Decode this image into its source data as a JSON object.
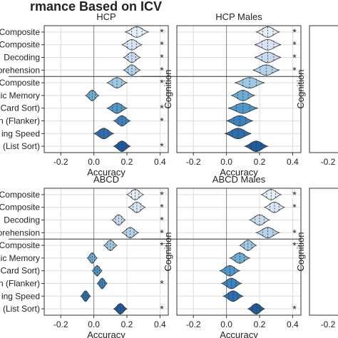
{
  "figure_title": "rmance Based on ICV",
  "axis_label_x": "Accuracy",
  "axis_label_y": "Cognition",
  "x_ticks": [
    "-0.2",
    "0.0",
    "0.2",
    "0.4"
  ],
  "star_symbol": "*",
  "row_labels": [
    "Composite",
    "Composite",
    "Decoding",
    "orehension",
    "Composite",
    "ic Memory",
    "Card Sort)",
    "n (Flanker)",
    "ing Speed",
    "(List Sort)"
  ],
  "colors": {
    "series_fills": [
      "#e3eef9",
      "#d6e6f6",
      "#c6dbef",
      "#b3d2ec",
      "#9ec9e5",
      "#6baed6",
      "#4f97c9",
      "#3b82bf",
      "#2c6eae",
      "#1d5b9d"
    ],
    "gridline": "#dddddd",
    "vline": "#888888",
    "hsep": "#333333",
    "panel_border": "#333333"
  },
  "chart_data": [
    {
      "type": "violin",
      "title": "HCP",
      "xlim": [
        -0.3,
        0.45
      ],
      "xlabel": "Accuracy",
      "ylabel": "",
      "grid": true,
      "categories": [
        "Composite",
        "Composite",
        "Decoding",
        "orehension",
        "Composite",
        "ic Memory",
        "Card Sort)",
        "n (Flanker)",
        "ing Speed",
        "(List Sort)"
      ],
      "medians": [
        0.26,
        0.23,
        0.23,
        0.23,
        0.14,
        -0.01,
        0.14,
        0.17,
        0.06,
        0.17
      ],
      "spreads": [
        0.07,
        0.06,
        0.05,
        0.05,
        0.06,
        0.04,
        0.06,
        0.05,
        0.06,
        0.05
      ],
      "significant": [
        true,
        true,
        true,
        true,
        true,
        false,
        true,
        true,
        false,
        true
      ]
    },
    {
      "type": "violin",
      "title": "HCP Males",
      "xlim": [
        -0.3,
        0.45
      ],
      "xlabel": "Accuracy",
      "ylabel": "Cognition",
      "grid": true,
      "categories": [
        "Composite",
        "Composite",
        "Decoding",
        "orehension",
        "Composite",
        "ic Memory",
        "Card Sort)",
        "n (Flanker)",
        "ing Speed",
        "(List Sort)"
      ],
      "medians": [
        0.25,
        0.25,
        0.25,
        0.24,
        0.14,
        0.1,
        0.1,
        0.08,
        0.07,
        0.18
      ],
      "spreads": [
        0.07,
        0.08,
        0.08,
        0.08,
        0.09,
        0.07,
        0.09,
        0.08,
        0.08,
        0.07
      ],
      "significant": [
        true,
        true,
        true,
        true,
        false,
        false,
        false,
        false,
        false,
        false
      ]
    },
    {
      "type": "violin",
      "title": "ABCD",
      "xlim": [
        -0.3,
        0.45
      ],
      "xlabel": "Accuracy",
      "ylabel": "",
      "grid": true,
      "categories": [
        "Composite",
        "Composite",
        "Decoding",
        "orehension",
        "Composite",
        "ic Memory",
        "Card Sort)",
        "n (Flanker)",
        "ing Speed",
        "(List Sort)"
      ],
      "medians": [
        0.25,
        0.26,
        0.15,
        0.22,
        0.1,
        -0.01,
        0.02,
        0.05,
        -0.05,
        0.16
      ],
      "spreads": [
        0.05,
        0.05,
        0.04,
        0.05,
        0.04,
        0.03,
        0.03,
        0.03,
        0.03,
        0.04
      ],
      "significant": [
        true,
        true,
        true,
        true,
        true,
        false,
        false,
        true,
        false,
        true
      ]
    },
    {
      "type": "violin",
      "title": "ABCD Males",
      "xlim": [
        -0.3,
        0.45
      ],
      "xlabel": "Accuracy",
      "ylabel": "Cognition",
      "grid": true,
      "categories": [
        "Composite",
        "Composite",
        "Decoding",
        "orehension",
        "Composite",
        "ic Memory",
        "Card Sort)",
        "n (Flanker)",
        "ing Speed",
        "(List Sort)"
      ],
      "medians": [
        0.27,
        0.29,
        0.2,
        0.25,
        0.13,
        0.08,
        0.02,
        0.03,
        0.04,
        0.18
      ],
      "spreads": [
        0.06,
        0.06,
        0.06,
        0.07,
        0.05,
        0.06,
        0.06,
        0.06,
        0.06,
        0.05
      ],
      "significant": [
        true,
        true,
        false,
        true,
        true,
        false,
        false,
        false,
        false,
        true
      ]
    }
  ]
}
